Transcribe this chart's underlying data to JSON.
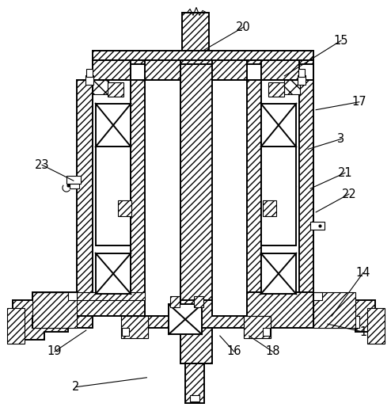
{
  "figsize": [
    4.94,
    5.19
  ],
  "dpi": 100,
  "bg_color": "#ffffff",
  "lw_main": 1.4,
  "lw_thin": 0.8,
  "hatch_density": 4,
  "label_configs": [
    [
      "20",
      308,
      33,
      258,
      62,
      "right"
    ],
    [
      "15",
      432,
      50,
      360,
      95,
      "right"
    ],
    [
      "17",
      455,
      128,
      400,
      138,
      "right"
    ],
    [
      "3",
      432,
      175,
      390,
      188,
      "right"
    ],
    [
      "21",
      437,
      218,
      393,
      238,
      "right"
    ],
    [
      "22",
      442,
      245,
      400,
      268,
      "right"
    ],
    [
      "14",
      460,
      345,
      420,
      400,
      "right"
    ],
    [
      "1",
      460,
      420,
      415,
      410,
      "right"
    ],
    [
      "18",
      345,
      445,
      315,
      425,
      "center"
    ],
    [
      "16",
      296,
      445,
      278,
      425,
      "center"
    ],
    [
      "19",
      68,
      445,
      108,
      418,
      "right"
    ],
    [
      "2",
      95,
      490,
      185,
      478,
      "right"
    ],
    [
      "23",
      52,
      208,
      92,
      228,
      "right"
    ]
  ]
}
